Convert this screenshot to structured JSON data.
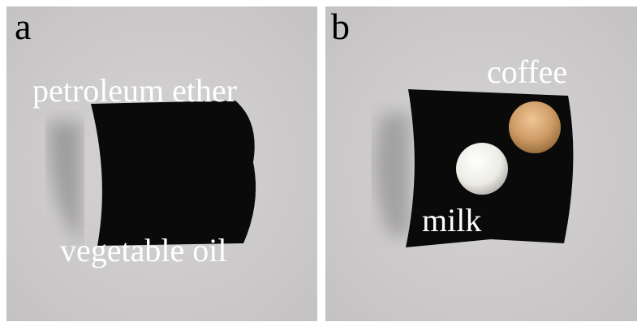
{
  "panels": [
    {
      "label": "a",
      "texts": [
        "petroleum ether",
        "vegetable oil"
      ]
    },
    {
      "label": "b",
      "texts": [
        "coffee",
        "milk"
      ]
    }
  ]
}
